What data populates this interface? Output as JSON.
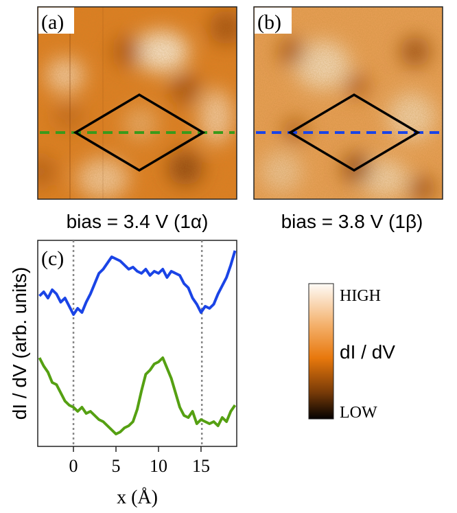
{
  "panels": {
    "a": {
      "label": "(a)",
      "caption": "bias =  3.4 V (1α)",
      "cut_color": "#3a9a1a"
    },
    "b": {
      "label": "(b)",
      "caption": "bias =  3.8 V (1β)",
      "cut_color": "#1a44e6"
    }
  },
  "colorbar": {
    "high_label": "HIGH",
    "low_label": "LOW",
    "quantity_label": "dI / dV",
    "colors": [
      "#fefbf7",
      "#f4b26e",
      "#e8780c",
      "#7a3c08",
      "#050201"
    ]
  },
  "chart_data": {
    "type": "line",
    "panel_label": "(c)",
    "xlabel": "x (Å)",
    "ylabel": "dI / dV  (arb. units)",
    "xlim": [
      -4.2,
      19.2
    ],
    "ylim": [
      0,
      1
    ],
    "xticks": [
      0,
      5,
      10,
      15
    ],
    "vlines": [
      0,
      15.1
    ],
    "series": [
      {
        "color": "#1a44e6",
        "x": [
          -4,
          -3.5,
          -3,
          -2.5,
          -2,
          -1.5,
          -1,
          -0.5,
          0,
          0.5,
          1,
          1.5,
          2,
          2.5,
          3,
          3.5,
          4,
          4.5,
          5,
          5.5,
          6,
          6.5,
          7,
          7.5,
          8,
          8.5,
          9,
          9.5,
          10,
          10.5,
          11,
          11.5,
          12,
          12.5,
          13,
          13.5,
          14,
          14.5,
          15,
          15.5,
          16,
          16.5,
          17,
          17.5,
          18,
          18.5,
          19
        ],
        "y": [
          0.73,
          0.75,
          0.72,
          0.76,
          0.74,
          0.7,
          0.72,
          0.68,
          0.64,
          0.67,
          0.65,
          0.7,
          0.74,
          0.79,
          0.84,
          0.86,
          0.89,
          0.92,
          0.91,
          0.9,
          0.88,
          0.86,
          0.87,
          0.85,
          0.84,
          0.86,
          0.83,
          0.85,
          0.84,
          0.86,
          0.82,
          0.85,
          0.84,
          0.83,
          0.79,
          0.77,
          0.72,
          0.69,
          0.65,
          0.68,
          0.67,
          0.69,
          0.74,
          0.78,
          0.82,
          0.88,
          0.95
        ]
      },
      {
        "color": "#55a012",
        "x": [
          -4,
          -3.5,
          -3,
          -2.5,
          -2,
          -1.5,
          -1,
          -0.5,
          0,
          0.5,
          1,
          1.5,
          2,
          2.5,
          3,
          3.5,
          4,
          4.5,
          5,
          5.5,
          6,
          6.5,
          7,
          7.5,
          8,
          8.5,
          9,
          9.5,
          10,
          10.5,
          11,
          11.5,
          12,
          12.5,
          13,
          13.5,
          14,
          14.5,
          15,
          15.5,
          16,
          16.5,
          17,
          17.5,
          18,
          18.5,
          19
        ],
        "y": [
          0.43,
          0.39,
          0.36,
          0.31,
          0.3,
          0.26,
          0.22,
          0.2,
          0.19,
          0.17,
          0.19,
          0.16,
          0.17,
          0.15,
          0.13,
          0.12,
          0.1,
          0.08,
          0.06,
          0.07,
          0.09,
          0.1,
          0.12,
          0.18,
          0.27,
          0.35,
          0.37,
          0.4,
          0.41,
          0.43,
          0.38,
          0.33,
          0.26,
          0.19,
          0.15,
          0.14,
          0.17,
          0.11,
          0.13,
          0.12,
          0.11,
          0.12,
          0.1,
          0.14,
          0.12,
          0.17,
          0.2
        ]
      }
    ]
  }
}
